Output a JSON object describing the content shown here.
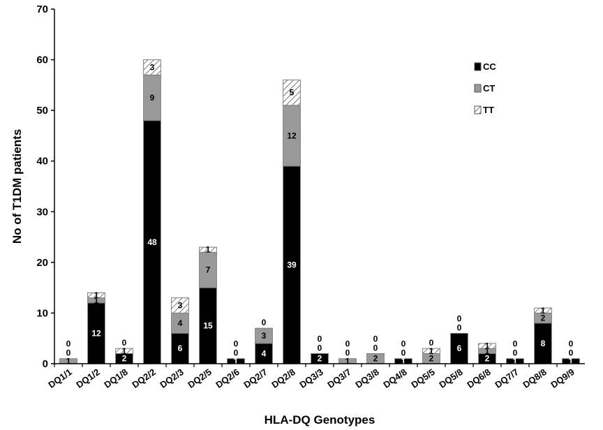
{
  "chart_data": {
    "type": "bar",
    "stacked": true,
    "title": "",
    "xlabel": "HLA-DQ Genotypes",
    "ylabel": "No of T1DM patients",
    "ylim": [
      0,
      70
    ],
    "yticks": [
      0,
      10,
      20,
      30,
      40,
      50,
      60,
      70
    ],
    "grid": false,
    "legend_position": "top-right",
    "categories": [
      "DQ1/1",
      "DQ1/2",
      "DQ1/8",
      "DQ2/2",
      "DQ2/3",
      "DQ2/5",
      "DQ2/6",
      "DQ2/7",
      "DQ2/8",
      "DQ3/3",
      "DQ3/7",
      "DQ3/8",
      "DQ4/8",
      "DQ5/5",
      "DQ5/8",
      "DQ6/8",
      "DQ7/7",
      "DQ8/8",
      "DQ9/9"
    ],
    "series": [
      {
        "name": "CC",
        "color": "#000000",
        "values": [
          0,
          12,
          2,
          48,
          6,
          15,
          1,
          4,
          39,
          2,
          0,
          0,
          1,
          0,
          6,
          2,
          1,
          8,
          1
        ]
      },
      {
        "name": "CT",
        "color": "#999999",
        "values": [
          1,
          1,
          0,
          9,
          4,
          7,
          0,
          3,
          12,
          0,
          1,
          2,
          0,
          2,
          0,
          1,
          0,
          2,
          0
        ]
      },
      {
        "name": "TT",
        "color": "#ffffff",
        "pattern": "hatched",
        "values": [
          0,
          1,
          1,
          3,
          3,
          1,
          0,
          0,
          5,
          0,
          0,
          0,
          0,
          1,
          0,
          1,
          0,
          1,
          0
        ]
      }
    ]
  }
}
